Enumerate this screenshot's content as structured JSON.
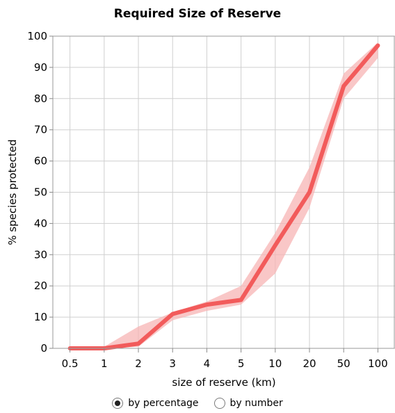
{
  "chart_data": {
    "type": "line",
    "title": "Required Size of Reserve",
    "xlabel": "size of reserve (km)",
    "ylabel": "% species protected",
    "categories": [
      "0.5",
      "1",
      "2",
      "3",
      "4",
      "5",
      "10",
      "20",
      "50",
      "100"
    ],
    "series": [
      {
        "values": [
          0,
          0,
          1.5,
          11,
          14,
          15.5,
          33,
          50,
          84,
          97
        ],
        "band_low": [
          0,
          0,
          0.5,
          9,
          12,
          14,
          24,
          45,
          80,
          93
        ],
        "band_high": [
          0,
          0.5,
          7,
          11.5,
          15,
          20,
          37,
          58,
          88,
          98
        ],
        "color": "#f25b5b",
        "band_color": "#f7b4b4"
      }
    ],
    "yticks": [
      0,
      10,
      20,
      30,
      40,
      50,
      60,
      70,
      80,
      90,
      100
    ],
    "ylim": [
      0,
      100
    ],
    "grid": true,
    "x_scale": "categorical"
  },
  "options": {
    "by_percentage": "by percentage",
    "by_number": "by number",
    "selected": "by_percentage"
  }
}
